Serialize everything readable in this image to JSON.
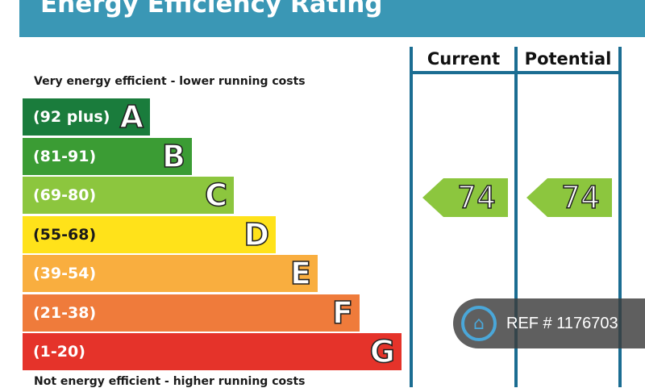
{
  "title": "Energy Efficiency Rating",
  "captions": {
    "top": "Very energy efficient - lower running costs",
    "bottom": "Not energy efficient - higher running costs"
  },
  "columns": {
    "current": "Current",
    "potential": "Potential"
  },
  "chart_data": {
    "type": "bar",
    "title": "Energy Efficiency Rating",
    "bands": [
      {
        "letter": "A",
        "range": "(92 plus)",
        "color": "#1a7c3c"
      },
      {
        "letter": "B",
        "range": "(81-91)",
        "color": "#3b9c34"
      },
      {
        "letter": "C",
        "range": "(69-80)",
        "color": "#8cc63e"
      },
      {
        "letter": "D",
        "range": "(55-68)",
        "color": "#ffe21a"
      },
      {
        "letter": "E",
        "range": "(39-54)",
        "color": "#f9ae3f"
      },
      {
        "letter": "F",
        "range": "(21-38)",
        "color": "#ef7b3b"
      },
      {
        "letter": "G",
        "range": "(1-20)",
        "color": "#e5332a"
      }
    ],
    "current": {
      "value": "74",
      "band": "C"
    },
    "potential": {
      "value": "74",
      "band": "C"
    }
  },
  "ref_badge": {
    "text": "REF # 1176703",
    "icon": "house-logo-icon"
  }
}
